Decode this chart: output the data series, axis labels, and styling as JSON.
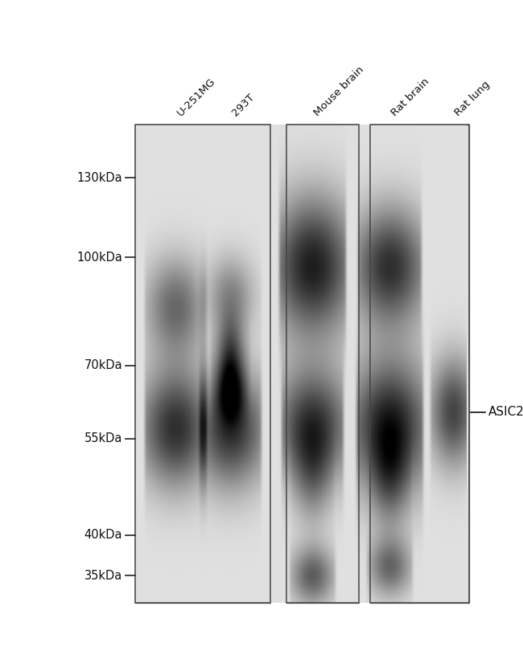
{
  "fig_bg": "#ffffff",
  "gel_bg": "#e8e8e8",
  "lane_labels": [
    "U-251MG",
    "293T",
    "Mouse brain",
    "Rat brain",
    "Rat lung"
  ],
  "mw_markers": [
    "130kDa",
    "100kDa",
    "70kDa",
    "55kDa",
    "40kDa",
    "35kDa"
  ],
  "mw_positions": [
    130,
    100,
    70,
    55,
    40,
    35
  ],
  "annotation": "ASIC2",
  "annotation_mw": 60,
  "mw_log_min": 3.4,
  "mw_log_max": 5.1
}
